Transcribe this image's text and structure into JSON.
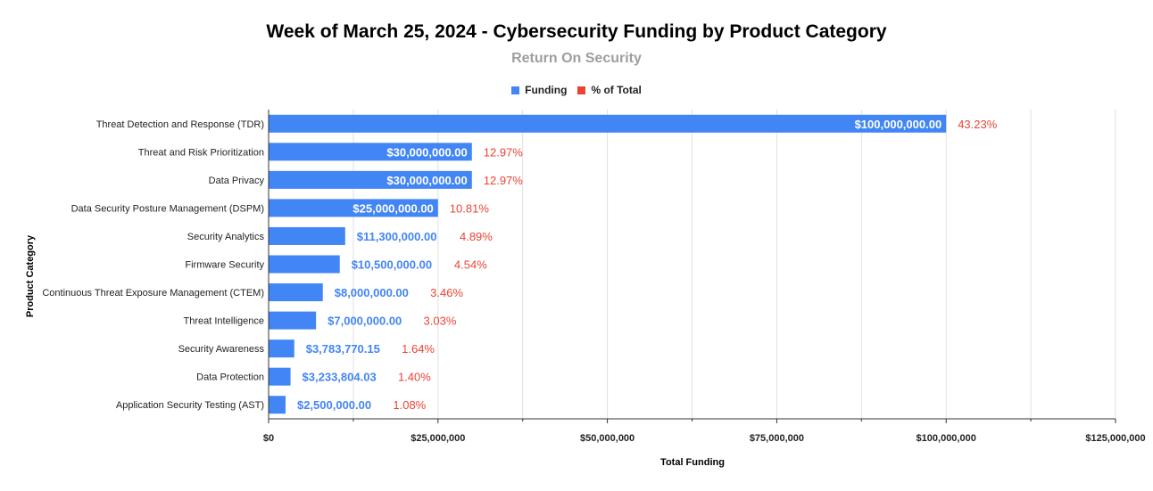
{
  "chart_data": {
    "type": "bar",
    "orientation": "horizontal",
    "title": "Week of March 25, 2024 - Cybersecurity Funding by Product Category",
    "subtitle": "Return On Security",
    "xlabel": "Total Funding",
    "ylabel": "Product Category",
    "xlim": [
      0,
      125000000
    ],
    "xticks": [
      0,
      25000000,
      50000000,
      75000000,
      100000000,
      125000000
    ],
    "xtick_labels": [
      "$0",
      "$25,000,000",
      "$50,000,000",
      "$75,000,000",
      "$100,000,000",
      "$125,000,000"
    ],
    "legend": [
      {
        "name": "Funding",
        "color": "#4285f4"
      },
      {
        "name": "% of Total",
        "color": "#ea4335"
      }
    ],
    "legend_position": "top",
    "grid": true,
    "categories": [
      "Threat Detection and Response (TDR)",
      "Threat and Risk Prioritization",
      "Data Privacy",
      "Data Security Posture Management (DSPM)",
      "Security Analytics",
      "Firmware Security",
      "Continuous Threat Exposure Management (CTEM)",
      "Threat Intelligence",
      "Security Awareness",
      "Data Protection",
      "Application Security Testing (AST)"
    ],
    "values": [
      100000000,
      30000000,
      30000000,
      25000000,
      11300000,
      10500000,
      8000000,
      7000000,
      3783770.15,
      3233804.03,
      2500000
    ],
    "value_labels": [
      "$100,000,000.00",
      "$30,000,000.00",
      "$30,000,000.00",
      "$25,000,000.00",
      "$11,300,000.00",
      "$10,500,000.00",
      "$8,000,000.00",
      "$7,000,000.00",
      "$3,783,770.15",
      "$3,233,804.03",
      "$2,500,000.00"
    ],
    "percent_labels": [
      "43.23%",
      "12.97%",
      "12.97%",
      "10.81%",
      "4.89%",
      "4.54%",
      "3.46%",
      "3.03%",
      "1.64%",
      "1.40%",
      "1.08%"
    ],
    "colors": {
      "bar": "#4285f4",
      "percent": "#ea4335",
      "grid": "#e0e0e0"
    }
  }
}
